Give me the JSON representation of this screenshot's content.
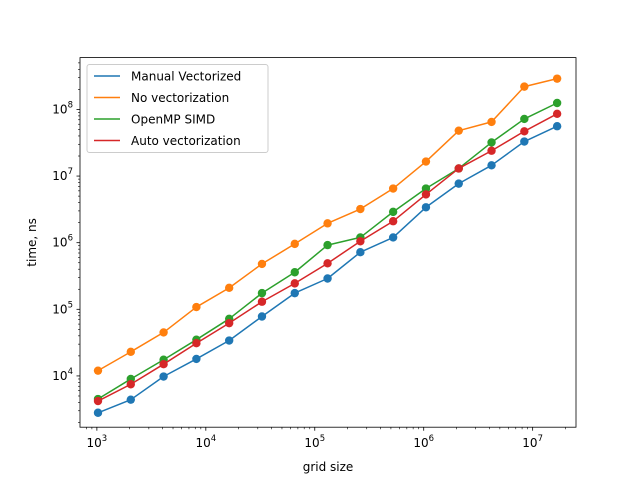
{
  "chart_data": {
    "type": "line",
    "xlabel": "grid size",
    "ylabel": "time, ns",
    "xscale": "log",
    "yscale": "log",
    "xlim": [
      700,
      25000000
    ],
    "ylim": [
      1700,
      600000000
    ],
    "grid": false,
    "legend_position": "top-left",
    "x": [
      1024,
      2048,
      4096,
      8192,
      16384,
      32768,
      65536,
      131072,
      262144,
      524288,
      1048576,
      2097152,
      4194304,
      8388608,
      16777216
    ],
    "x_ticks": [
      {
        "value": 1000,
        "base": "10",
        "exp": "3"
      },
      {
        "value": 10000,
        "base": "10",
        "exp": "4"
      },
      {
        "value": 100000,
        "base": "10",
        "exp": "5"
      },
      {
        "value": 1000000,
        "base": "10",
        "exp": "6"
      },
      {
        "value": 10000000,
        "base": "10",
        "exp": "7"
      }
    ],
    "y_ticks": [
      {
        "value": 10000,
        "base": "10",
        "exp": "4"
      },
      {
        "value": 100000,
        "base": "10",
        "exp": "5"
      },
      {
        "value": 1000000,
        "base": "10",
        "exp": "6"
      },
      {
        "value": 10000000,
        "base": "10",
        "exp": "7"
      },
      {
        "value": 100000000,
        "base": "10",
        "exp": "8"
      }
    ],
    "series": [
      {
        "name": "Manual Vectorized",
        "color": "#1f77b4",
        "values": [
          2800,
          4400,
          9800,
          18000,
          34000,
          78000,
          175000,
          290000,
          720000,
          1200000,
          3400000,
          7700000,
          14500000,
          33000000,
          56000000
        ]
      },
      {
        "name": "No vectorization",
        "color": "#ff7f0e",
        "values": [
          12000,
          23000,
          45000,
          108000,
          210000,
          480000,
          960000,
          1950000,
          3200000,
          6500000,
          16500000,
          48000000,
          65000000,
          220000000,
          290000000
        ]
      },
      {
        "name": "OpenMP SIMD",
        "color": "#2ca02c",
        "values": [
          4500,
          9000,
          17500,
          35000,
          72000,
          175000,
          360000,
          920000,
          1200000,
          2900000,
          6500000,
          13000000,
          32000000,
          72000000,
          125000000
        ]
      },
      {
        "name": "Auto vectorization",
        "color": "#d62728",
        "values": [
          4200,
          7500,
          15000,
          31000,
          62000,
          130000,
          245000,
          490000,
          1050000,
          2100000,
          5300000,
          13000000,
          24000000,
          47000000,
          86000000
        ]
      }
    ]
  }
}
